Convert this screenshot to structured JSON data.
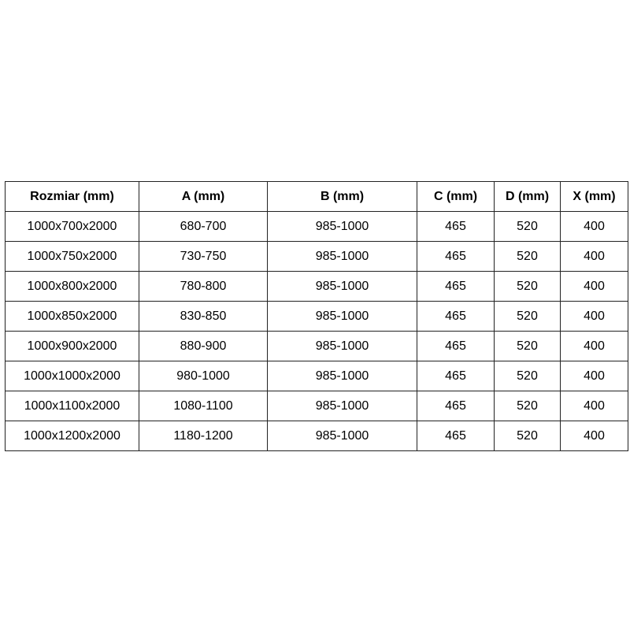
{
  "headers": [
    "Rozmiar (mm)",
    "A (mm)",
    "B (mm)",
    "C (mm)",
    "D (mm)",
    "X (mm)"
  ],
  "rows": [
    [
      "1000x700x2000",
      "680-700",
      "985-1000",
      "465",
      "520",
      "400"
    ],
    [
      "1000x750x2000",
      "730-750",
      "985-1000",
      "465",
      "520",
      "400"
    ],
    [
      "1000x800x2000",
      "780-800",
      "985-1000",
      "465",
      "520",
      "400"
    ],
    [
      "1000x850x2000",
      "830-850",
      "985-1000",
      "465",
      "520",
      "400"
    ],
    [
      "1000x900x2000",
      "880-900",
      "985-1000",
      "465",
      "520",
      "400"
    ],
    [
      "1000x1000x2000",
      "980-1000",
      "985-1000",
      "465",
      "520",
      "400"
    ],
    [
      "1000x1100x2000",
      "1080-1100",
      "985-1000",
      "465",
      "520",
      "400"
    ],
    [
      "1000x1200x2000",
      "1180-1200",
      "985-1000",
      "465",
      "520",
      "400"
    ]
  ]
}
